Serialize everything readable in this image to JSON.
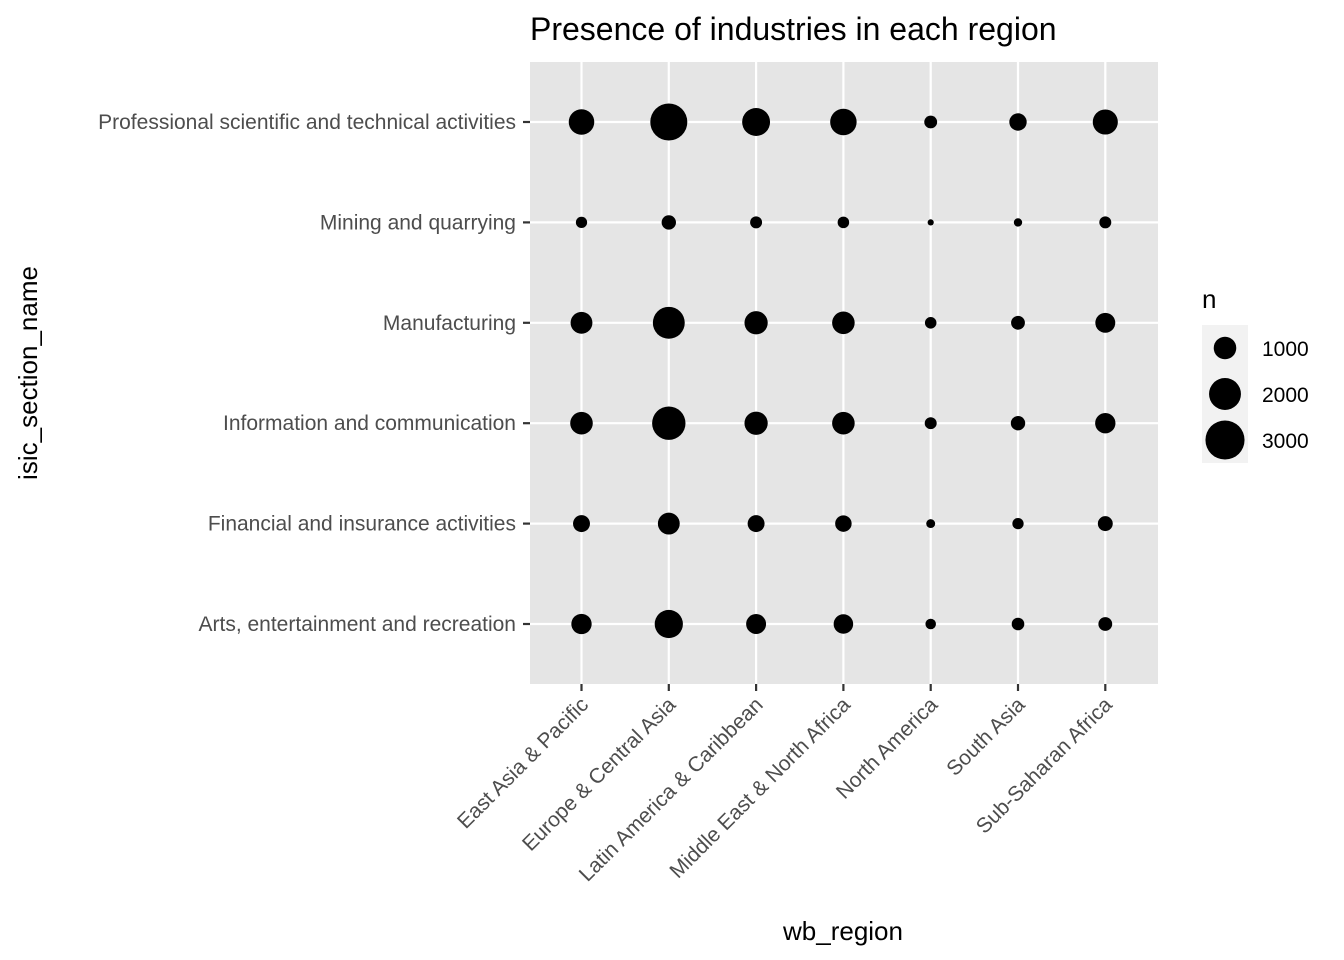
{
  "chart_data": {
    "type": "scatter",
    "title": "Presence of industries in each region",
    "xlabel": "wb_region",
    "ylabel": "isic_section_name",
    "x_categories": [
      "East Asia & Pacific",
      "Europe & Central Asia",
      "Latin America & Caribbean",
      "Middle East & North Africa",
      "North America",
      "South Asia",
      "Sub-Saharan Africa"
    ],
    "y_categories": [
      "Arts, entertainment and recreation",
      "Financial and insurance activities",
      "Information and communication",
      "Manufacturing",
      "Mining and quarrying",
      "Professional scientific and technical activities"
    ],
    "size_variable": "n",
    "values": [
      [
        1300,
        2500,
        1250,
        1200,
        350,
        500,
        600
      ],
      [
        900,
        1500,
        900,
        850,
        250,
        400,
        700
      ],
      [
        1600,
        3500,
        1700,
        1600,
        450,
        650,
        1300
      ],
      [
        1500,
        3200,
        1700,
        1600,
        420,
        600,
        1250
      ],
      [
        400,
        650,
        450,
        420,
        120,
        220,
        450
      ],
      [
        2050,
        4300,
        2450,
        2200,
        520,
        950,
        1980
      ]
    ],
    "legend": {
      "title": "n",
      "position": "right",
      "breaks": [
        1000,
        2000,
        3000
      ]
    },
    "grid": true,
    "panel_background": "#e5e5e5",
    "point_color": "#000000"
  }
}
